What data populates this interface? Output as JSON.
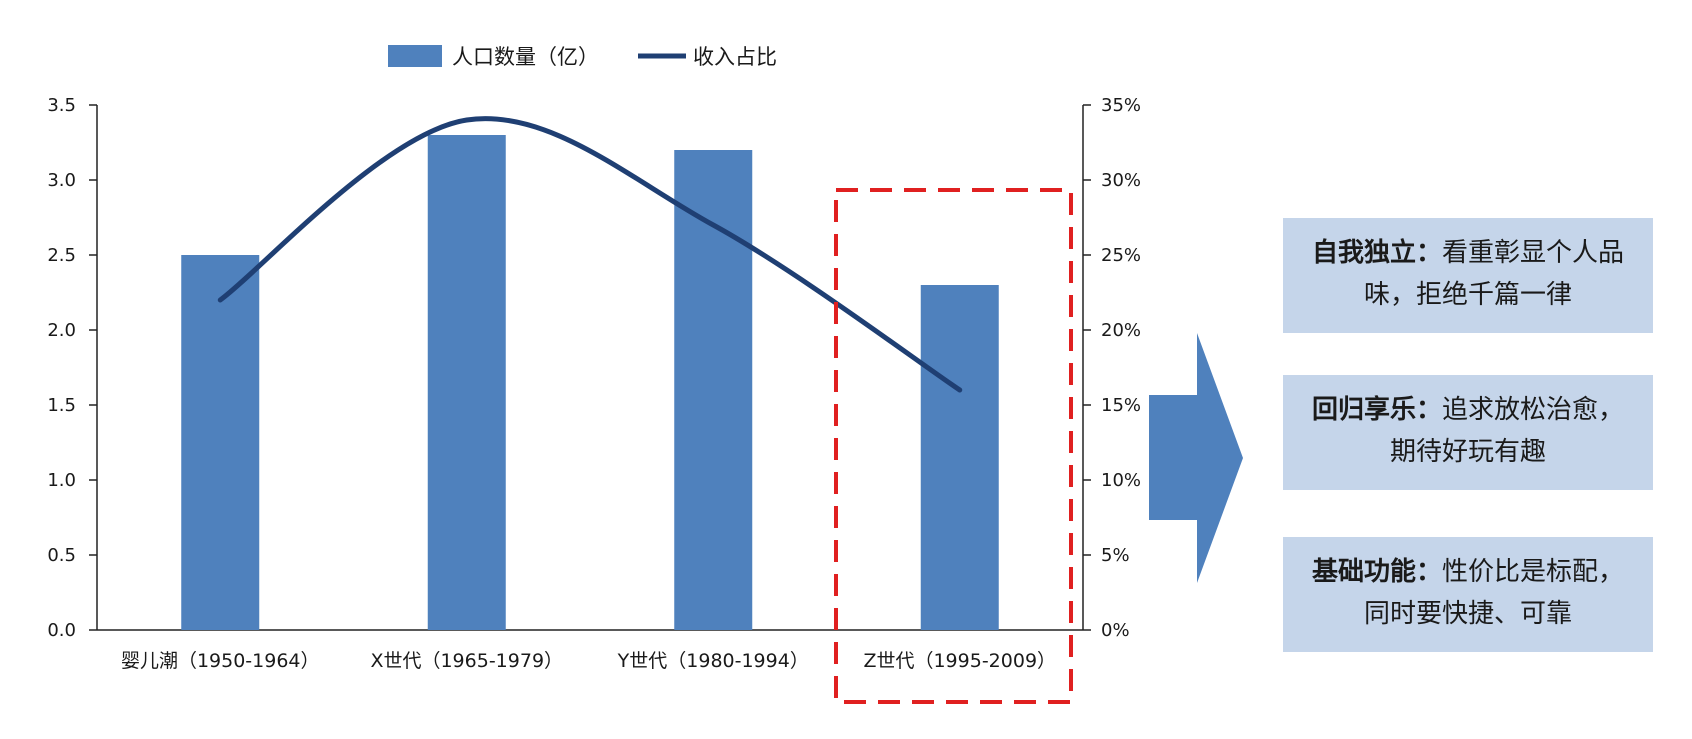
{
  "chart_data": {
    "type": "bar",
    "categories": [
      "婴儿潮（1950-1964）",
      "X世代（1965-1979）",
      "Y世代（1980-1994）",
      "Z世代（1995-2009）"
    ],
    "series": [
      {
        "name": "人口数量（亿）",
        "type": "bar",
        "axis": "left",
        "values": [
          2.5,
          3.3,
          3.2,
          2.3
        ],
        "color": "#4f81bd"
      },
      {
        "name": "收入占比",
        "type": "line",
        "axis": "right",
        "smooth": true,
        "values": [
          22,
          34,
          27,
          16
        ],
        "unit": "%",
        "color": "#1f3f73"
      }
    ],
    "left_axis": {
      "min": 0,
      "max": 3.5,
      "ticks": [
        "0.0",
        "0.5",
        "1.0",
        "1.5",
        "2.0",
        "2.5",
        "3.0",
        "3.5"
      ]
    },
    "right_axis": {
      "min": 0,
      "max": 35,
      "ticks": [
        "0%",
        "5%",
        "10%",
        "15%",
        "20%",
        "25%",
        "30%",
        "35%"
      ]
    },
    "legend_position": "top",
    "grid": false,
    "highlight": {
      "category": "Z世代（1995-2009）",
      "style": "red dashed box",
      "color": "#e02020"
    }
  },
  "arrow_color": "#4f81bd",
  "info_boxes": [
    {
      "title": "自我独立：",
      "body": "看重彰显个人品味，拒绝千篇一律"
    },
    {
      "title": "回归享乐：",
      "body": "追求放松治愈，期待好玩有趣"
    },
    {
      "title": "基础功能：",
      "body": "性价比是标配，同时要快捷、可靠"
    }
  ]
}
